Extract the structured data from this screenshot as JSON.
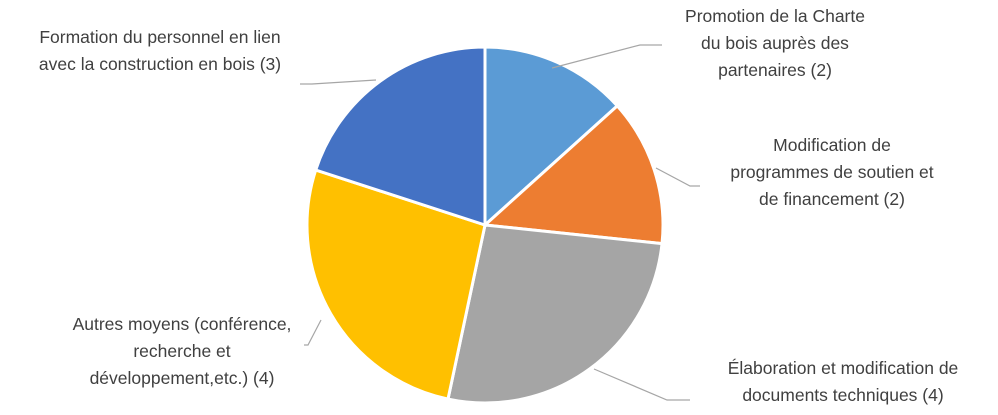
{
  "chart_data": {
    "type": "pie",
    "title": "",
    "categories": [
      "Promotion de la Charte du bois auprès des partenaires",
      "Modification de programmes de soutien et de financement",
      "Élaboration et modification de documents techniques",
      "Autres moyens (conférence, recherche et développement,etc.)",
      "Formation du personnel en lien avec la construction en bois"
    ],
    "values": [
      2,
      2,
      4,
      4,
      3
    ],
    "colors": [
      "#5b9bd5",
      "#ed7d31",
      "#a5a5a5",
      "#ffc000",
      "#4472c4"
    ],
    "legend": false,
    "data_labels": [
      [
        "Promotion de la Charte",
        "du bois auprès des",
        "partenaires (2)"
      ],
      [
        "Modification de",
        "programmes de soutien et",
        "de financement (2)"
      ],
      [
        "Élaboration et modification de",
        "documents techniques (4)"
      ],
      [
        "Autres moyens (conférence,",
        "recherche et",
        "développement,etc.) (4)"
      ],
      [
        "Formation du personnel en lien",
        "avec la construction en bois (3)"
      ]
    ]
  }
}
